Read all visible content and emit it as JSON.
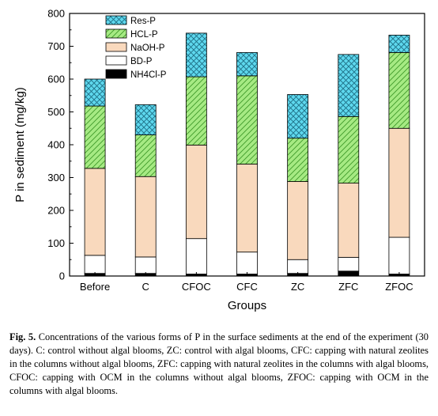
{
  "chart_data": {
    "type": "bar",
    "stacked": true,
    "categories": [
      "Before",
      "C",
      "CFOC",
      "CFC",
      "ZC",
      "ZFC",
      "ZFOC"
    ],
    "xlabel": "Groups",
    "ylabel": "P in sediment (mg/kg)",
    "ylim": [
      0,
      800
    ],
    "yticks": [
      0,
      100,
      200,
      300,
      400,
      500,
      600,
      700,
      800
    ],
    "legend_position": "top-left",
    "grid": false,
    "series": [
      {
        "name": "NH4Cl-P",
        "color": "#000000",
        "pattern": "solid",
        "values": [
          8,
          8,
          6,
          6,
          8,
          15,
          6
        ]
      },
      {
        "name": "BD-P",
        "color": "#ffffff",
        "pattern": "none",
        "values": [
          55,
          50,
          108,
          67,
          42,
          42,
          112
        ]
      },
      {
        "name": "NaOH-P",
        "color": "#f9d9bd",
        "pattern": "none",
        "values": [
          265,
          245,
          285,
          268,
          238,
          226,
          332
        ]
      },
      {
        "name": "HCL-P",
        "color": "#a6ea83",
        "pattern": "hatch",
        "values": [
          190,
          127,
          208,
          269,
          132,
          203,
          231
        ]
      },
      {
        "name": "Res-P",
        "color": "#5ed8ee",
        "pattern": "crosshatch",
        "values": [
          82,
          92,
          133,
          71,
          133,
          189,
          53
        ]
      }
    ]
  },
  "caption": {
    "label": "Fig. 5.",
    "text": "Concentrations of the various forms of P in the surface sediments at the end of the experiment (30 days). C: control without algal blooms, ZC: control with algal blooms, CFC: capping with natural zeolites in the columns without algal blooms, ZFC: capping with natural zeolites in the columns with algal blooms, CFOC: capping with OCM in the columns without algal blooms, ZFOC: capping with OCM in the columns with algal blooms."
  }
}
